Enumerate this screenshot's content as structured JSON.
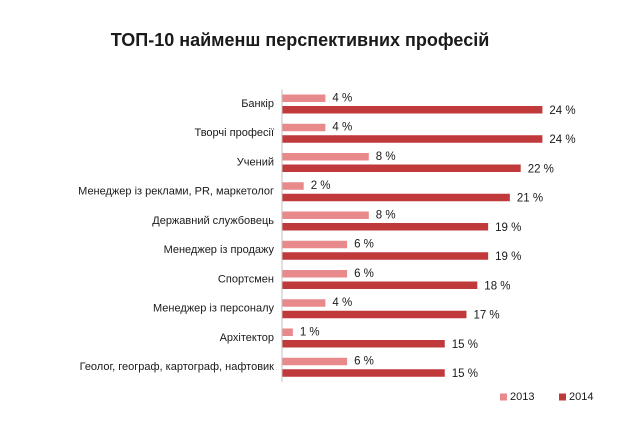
{
  "chart_data": {
    "type": "bar",
    "orientation": "horizontal",
    "title": "ТОП-10 найменш перспективних професій",
    "categories": [
      "Банкір",
      "Творчі професії",
      "Учений",
      "Менеджер із реклами, PR, маркетолог",
      "Державний службовець",
      "Менеджер із продажу",
      "Спортсмен",
      "Менеджер із персоналу",
      "Архітектор",
      "Геолог, географ, картограф, нафтовик"
    ],
    "series": [
      {
        "name": "2013",
        "color": "#e8898b",
        "values": [
          4,
          4,
          8,
          2,
          8,
          6,
          6,
          4,
          1,
          6
        ],
        "labels": [
          "4 %",
          "4 %",
          "8 %",
          "2 %",
          "8 %",
          "6 %",
          "6 %",
          "4 %",
          "1 %",
          "6 %"
        ]
      },
      {
        "name": "2014",
        "color": "#c0393b",
        "values": [
          24,
          24,
          22,
          21,
          19,
          19,
          18,
          17,
          15,
          15
        ],
        "labels": [
          "24 %",
          "24 %",
          "22 %",
          "21 %",
          "19 %",
          "19 %",
          "18 %",
          "17 %",
          "15 %",
          "15 %"
        ]
      }
    ],
    "xlim": [
      0,
      25
    ],
    "xlabel": "",
    "ylabel": "",
    "grid": false,
    "legend": "bottom-right"
  }
}
